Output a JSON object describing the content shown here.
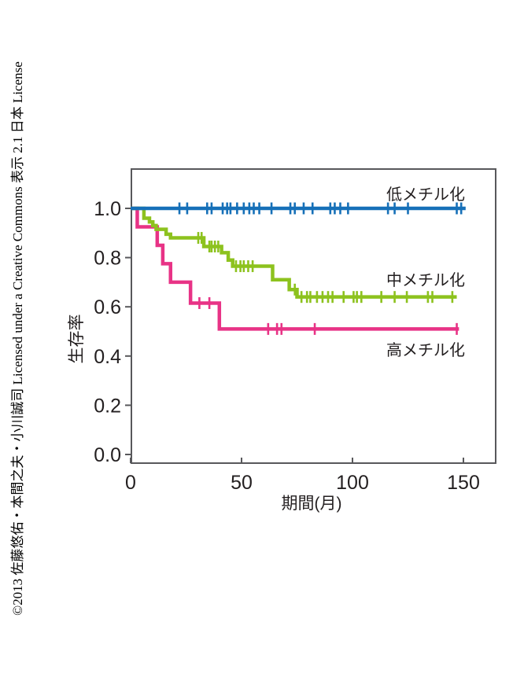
{
  "license_text": "©2013 佐藤悠佑・本間之夫・小川誠司 Licensed under a Creative Commons 表示 2.1 日本 License",
  "chart_data": {
    "type": "line",
    "subtype": "kaplan-meier-step",
    "title": "",
    "xlabel": "期間(月)",
    "ylabel": "生存率",
    "xlim": [
      0,
      163
    ],
    "ylim": [
      0.0,
      1.0
    ],
    "x_ticks": [
      "0",
      "50",
      "100",
      "150"
    ],
    "y_ticks": [
      "0.0",
      "0.2",
      "0.4",
      "0.6",
      "0.8",
      "1.0"
    ],
    "grid": false,
    "legend_position": "inline-labels",
    "frame_color": "#58585b",
    "text_color": "#231f20",
    "series": [
      {
        "id": "low-methylation",
        "name": "低メチル化",
        "color": "#1670b8",
        "start": [
          0,
          1.0
        ],
        "drops": [],
        "end_month": 151,
        "censor_marks": [
          [
            22,
            1.0
          ],
          [
            25.5,
            1.0
          ],
          [
            34.5,
            1.0
          ],
          [
            36.5,
            1.0
          ],
          [
            41.5,
            1.0
          ],
          [
            43.5,
            1.0
          ],
          [
            45,
            1.0
          ],
          [
            48,
            1.0
          ],
          [
            51,
            1.0
          ],
          [
            53.5,
            1.0
          ],
          [
            55.5,
            1.0
          ],
          [
            58,
            1.0
          ],
          [
            63.5,
            1.0
          ],
          [
            72,
            1.0
          ],
          [
            74,
            1.0
          ],
          [
            78,
            1.0
          ],
          [
            82,
            1.0
          ],
          [
            90,
            1.0
          ],
          [
            92,
            1.0
          ],
          [
            94.5,
            1.0
          ],
          [
            98,
            1.0
          ],
          [
            116,
            1.0
          ],
          [
            119,
            1.0
          ],
          [
            125,
            1.0
          ],
          [
            147,
            1.0
          ],
          [
            149,
            1.0
          ]
        ],
        "label": {
          "text": "低メチル化",
          "x": 133,
          "y": 1.058
        }
      },
      {
        "id": "mid-methylation",
        "name": "中メチル化",
        "color": "#8dc21e",
        "start": [
          0,
          1.0
        ],
        "drops": [
          [
            6,
            0.96
          ],
          [
            8.5,
            0.945
          ],
          [
            10,
            0.93
          ],
          [
            11.5,
            0.915
          ],
          [
            16,
            0.895
          ],
          [
            18,
            0.88
          ],
          [
            33,
            0.845
          ],
          [
            41,
            0.82
          ],
          [
            44,
            0.79
          ],
          [
            46,
            0.765
          ],
          [
            64,
            0.71
          ],
          [
            71.5,
            0.67
          ],
          [
            75,
            0.64
          ]
        ],
        "end_month": 147,
        "censor_marks": [
          [
            30.5,
            0.88
          ],
          [
            32,
            0.88
          ],
          [
            35.5,
            0.845
          ],
          [
            36.5,
            0.845
          ],
          [
            38,
            0.845
          ],
          [
            39.5,
            0.845
          ],
          [
            47.5,
            0.765
          ],
          [
            49.5,
            0.765
          ],
          [
            51,
            0.765
          ],
          [
            53,
            0.765
          ],
          [
            55,
            0.765
          ],
          [
            74,
            0.67
          ],
          [
            77,
            0.64
          ],
          [
            79.5,
            0.64
          ],
          [
            81,
            0.64
          ],
          [
            84,
            0.64
          ],
          [
            86.5,
            0.64
          ],
          [
            89,
            0.64
          ],
          [
            91,
            0.64
          ],
          [
            96,
            0.64
          ],
          [
            100.5,
            0.64
          ],
          [
            102,
            0.64
          ],
          [
            104,
            0.64
          ],
          [
            113,
            0.64
          ],
          [
            119,
            0.64
          ],
          [
            124.5,
            0.64
          ],
          [
            134,
            0.64
          ],
          [
            136,
            0.64
          ],
          [
            145,
            0.64
          ]
        ],
        "label": {
          "text": "中メチル化",
          "x": 133,
          "y": 0.71
        }
      },
      {
        "id": "high-methylation",
        "name": "高メチル化",
        "color": "#e83386",
        "start": [
          0,
          1.0
        ],
        "drops": [
          [
            3,
            0.925
          ],
          [
            12,
            0.85
          ],
          [
            14.5,
            0.775
          ],
          [
            18,
            0.7
          ],
          [
            27,
            0.615
          ],
          [
            40,
            0.51
          ]
        ],
        "end_month": 148,
        "censor_marks": [
          [
            31,
            0.615
          ],
          [
            35.5,
            0.615
          ],
          [
            62,
            0.51
          ],
          [
            66,
            0.51
          ],
          [
            68,
            0.51
          ],
          [
            83,
            0.51
          ],
          [
            147,
            0.51
          ]
        ],
        "label": {
          "text": "高メチル化",
          "x": 133,
          "y": 0.425
        }
      }
    ]
  }
}
